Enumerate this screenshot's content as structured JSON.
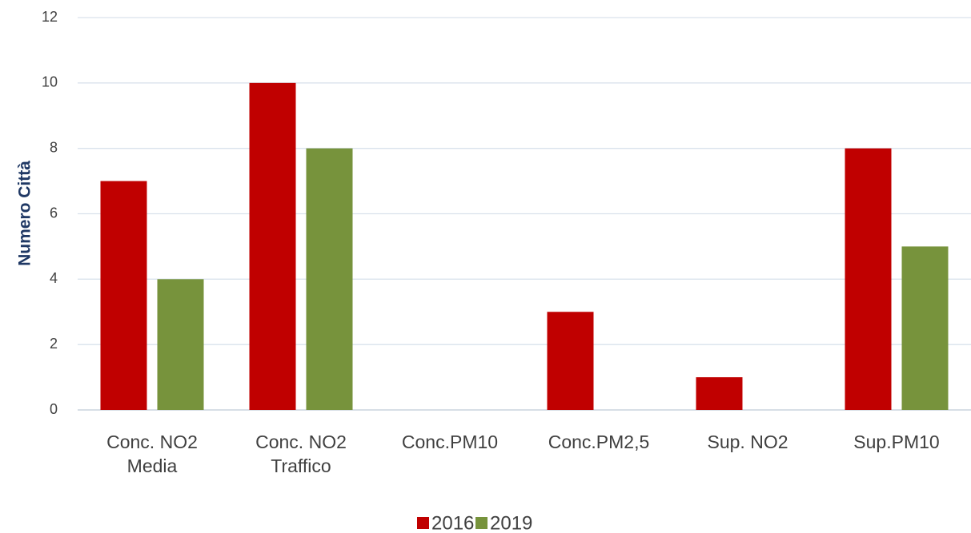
{
  "chart_data": {
    "type": "bar",
    "y_label": "Numero Città",
    "categories": [
      "Conc. NO2 Media",
      "Conc. NO2 Traffico",
      "Conc.PM10",
      "Conc.PM2,5",
      "Sup. NO2",
      "Sup.PM10"
    ],
    "series": [
      {
        "name": "2016",
        "color": "#c00000",
        "values": [
          7,
          10,
          0,
          3,
          1,
          8
        ]
      },
      {
        "name": "2019",
        "color": "#77933c",
        "values": [
          4,
          8,
          0,
          0,
          0,
          5
        ]
      }
    ],
    "ylim": [
      0,
      12
    ],
    "yticks": [
      0,
      2,
      4,
      6,
      8,
      10,
      12
    ],
    "grid": true,
    "legend": "bottom"
  }
}
